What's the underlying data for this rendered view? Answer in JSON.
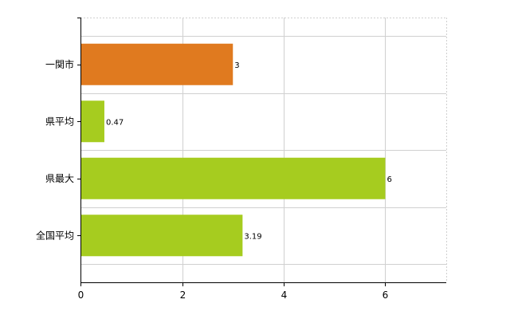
{
  "chart_data": {
    "type": "bar",
    "orientation": "horizontal",
    "categories": [
      "一関市",
      "県平均",
      "県最大",
      "全国平均"
    ],
    "values": [
      3,
      0.47,
      6,
      3.19
    ],
    "value_labels": [
      "3",
      "0.47",
      "6",
      "3.19"
    ],
    "colors": [
      "#e07a1f",
      "#a6cc1f",
      "#a6cc1f",
      "#a6cc1f"
    ],
    "xlim": [
      0,
      7.2
    ],
    "xticks": [
      0,
      2,
      4,
      6
    ],
    "xtick_labels": [
      "0",
      "2",
      "4",
      "6"
    ],
    "grid": true,
    "legend": "none",
    "title": "",
    "xlabel": "",
    "ylabel": ""
  }
}
